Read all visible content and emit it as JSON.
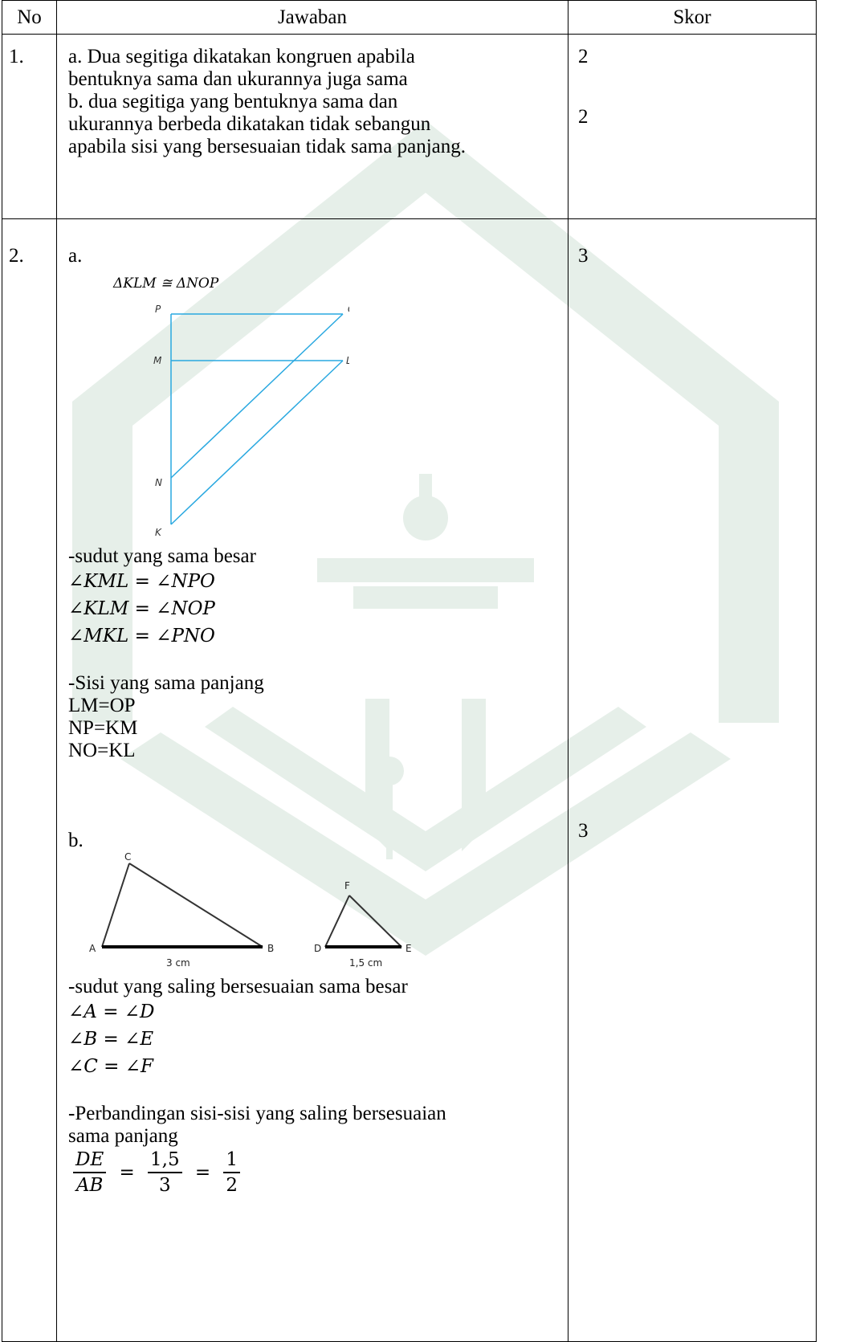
{
  "table": {
    "headers": {
      "no": "No",
      "answer": "Jawaban",
      "score": "Skor"
    }
  },
  "row1": {
    "no": "1.",
    "a_line1": "a. Dua segitiga dikatakan kongruen apabila",
    "a_line2": "bentuknya sama dan ukurannya juga sama",
    "b_line1": "b. dua segitiga yang bentuknya sama dan",
    "b_line2": "ukurannya berbeda dikatakan tidak sebangun",
    "b_line3": "apabila sisi yang bersesuaian tidak sama panjang.",
    "score_a": "2",
    "score_b": "2"
  },
  "row2": {
    "no": "2.",
    "part_a": {
      "label": "a.",
      "diagram_caption": "ΔKLM ≅ ΔNOP",
      "points": [
        "P",
        "O",
        "M",
        "L",
        "N",
        "K"
      ],
      "angles_title": "-sudut yang sama besar",
      "angles": [
        "∠KML = ∠NPO",
        "∠KLM = ∠NOP",
        "∠MKL = ∠PNO"
      ],
      "sides_title": "-Sisi yang sama panjang",
      "sides": [
        "LM=OP",
        "NP=KM",
        "NO=KL"
      ],
      "score": "3"
    },
    "part_b": {
      "label": "b.",
      "tri1_labels": [
        "C",
        "A",
        "B",
        "3 cm"
      ],
      "tri2_labels": [
        "F",
        "D",
        "E",
        "1,5 cm"
      ],
      "angles_title": "-sudut yang saling bersesuaian sama besar",
      "angles": [
        "∠A = ∠D",
        "∠B = ∠E",
        "∠C = ∠F"
      ],
      "ratio_title_1": "-Perbandingan sisi-sisi yang saling bersesuaian",
      "ratio_title_2": "sama panjang",
      "ratio": {
        "n1": "DE",
        "d1": "AB",
        "n2": "1,5",
        "d2": "3",
        "n3": "1",
        "d3": "2",
        "eq": "="
      },
      "score": "3"
    }
  },
  "colors": {
    "diagram_line": "#29a8e0",
    "watermark": "#e3ede8"
  }
}
